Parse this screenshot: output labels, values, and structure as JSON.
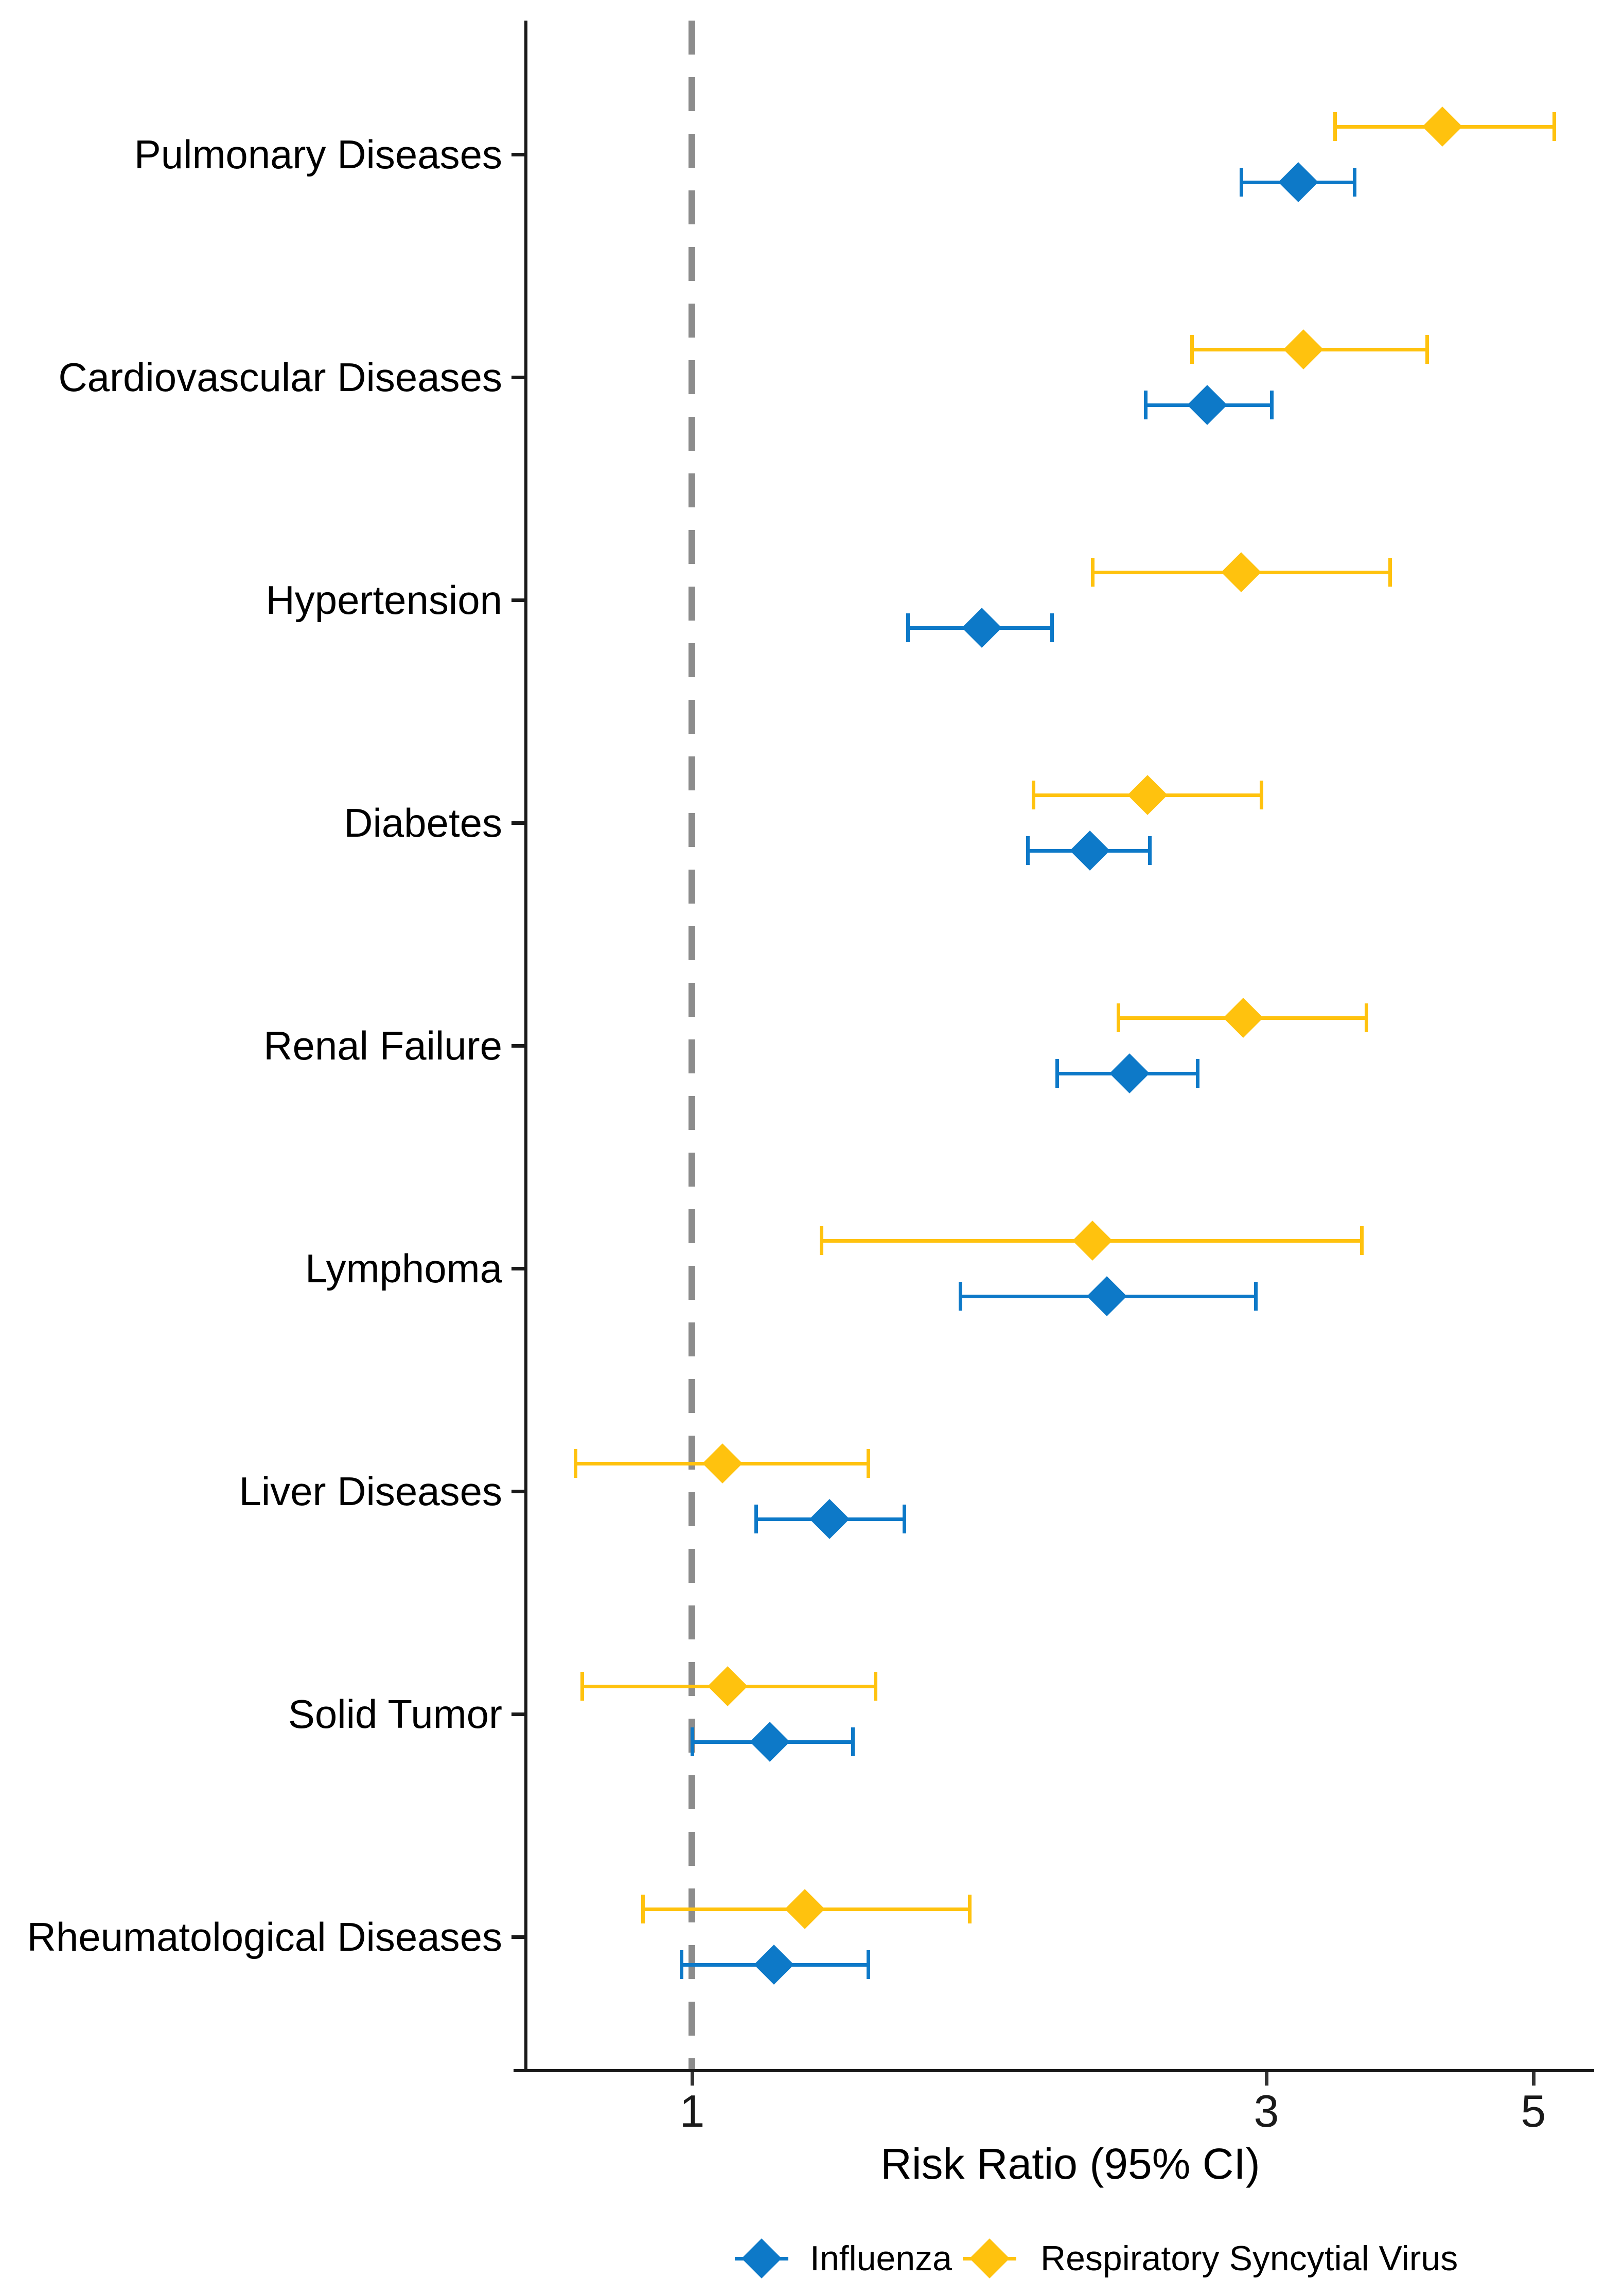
{
  "chart_data": {
    "type": "scatter",
    "subtype": "forest-plot-pointrange",
    "title": "",
    "xlabel": "Risk Ratio (95% CI)",
    "x_scale": "log10",
    "xlim": [
      0.7,
      5.7
    ],
    "x_ticks": [
      "1",
      "3",
      "5"
    ],
    "reference_line_x": 1,
    "grid": false,
    "legend_position": "bottom",
    "categories": [
      "Pulmonary Diseases",
      "Cardiovascular Diseases",
      "Hypertension",
      "Diabetes",
      "Renal Failure",
      "Lymphoma",
      "Liver Diseases",
      "Solid Tumor",
      "Rheumatological Diseases"
    ],
    "series": [
      {
        "name": "Respiratory Syncytial Virus",
        "color": "#FFC20E",
        "points": [
          {
            "est": 4.2,
            "lo": 3.42,
            "hi": 5.2
          },
          {
            "est": 3.22,
            "lo": 2.6,
            "hi": 4.08
          },
          {
            "est": 2.86,
            "lo": 2.15,
            "hi": 3.8
          },
          {
            "est": 2.39,
            "lo": 1.92,
            "hi": 2.97
          },
          {
            "est": 2.87,
            "lo": 2.26,
            "hi": 3.63
          },
          {
            "est": 2.15,
            "lo": 1.28,
            "hi": 3.6
          },
          {
            "est": 1.06,
            "lo": 0.8,
            "hi": 1.4
          },
          {
            "est": 1.07,
            "lo": 0.81,
            "hi": 1.42
          },
          {
            "est": 1.24,
            "lo": 0.91,
            "hi": 1.7
          }
        ]
      },
      {
        "name": "Influenza",
        "color": "#0D79C8",
        "points": [
          {
            "est": 3.19,
            "lo": 2.86,
            "hi": 3.55
          },
          {
            "est": 2.68,
            "lo": 2.38,
            "hi": 3.03
          },
          {
            "est": 1.74,
            "lo": 1.51,
            "hi": 1.99
          },
          {
            "est": 2.14,
            "lo": 1.9,
            "hi": 2.4
          },
          {
            "est": 2.31,
            "lo": 2.01,
            "hi": 2.63
          },
          {
            "est": 2.21,
            "lo": 1.67,
            "hi": 2.94
          },
          {
            "est": 1.3,
            "lo": 1.13,
            "hi": 1.5
          },
          {
            "est": 1.16,
            "lo": 1.0,
            "hi": 1.36
          },
          {
            "est": 1.17,
            "lo": 0.98,
            "hi": 1.4
          }
        ]
      }
    ]
  },
  "legend": {
    "items": [
      {
        "label": "Influenza",
        "color": "#0D79C8"
      },
      {
        "label": "Respiratory Syncytial Virus",
        "color": "#FFC20E"
      }
    ]
  },
  "colors": {
    "reference_line": "#8C8C8C",
    "axis": "#1A1A1A",
    "text": "#000000"
  }
}
